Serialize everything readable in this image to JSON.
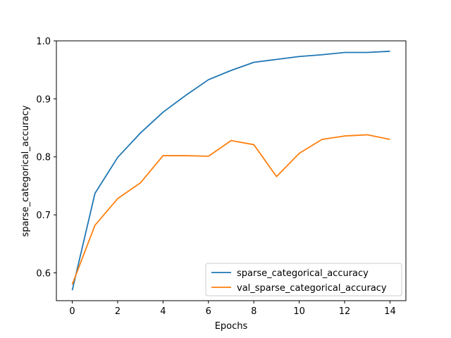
{
  "chart_data": {
    "type": "line",
    "title": "",
    "xlabel": "Epochs",
    "ylabel": "sparse_categorical_accuracy",
    "xlim": [
      -0.7,
      14.7
    ],
    "ylim": [
      0.552,
      1.0
    ],
    "xticks": [
      0,
      2,
      4,
      6,
      8,
      10,
      12,
      14
    ],
    "yticks": [
      0.6,
      0.7,
      0.8,
      0.9,
      1.0
    ],
    "ytick_labels": [
      "0.6",
      "0.7",
      "0.8",
      "0.9",
      "1.0"
    ],
    "x": [
      0,
      1,
      2,
      3,
      4,
      5,
      6,
      7,
      8,
      9,
      10,
      11,
      12,
      13,
      14
    ],
    "grid": false,
    "legend_position": "lower-right",
    "series": [
      {
        "name": "sparse_categorical_accuracy",
        "color": "#1f77b4",
        "values": [
          0.57,
          0.737,
          0.799,
          0.841,
          0.877,
          0.906,
          0.933,
          0.949,
          0.963,
          0.968,
          0.973,
          0.976,
          0.98,
          0.98,
          0.982
        ]
      },
      {
        "name": "val_sparse_categorical_accuracy",
        "color": "#ff7f0e",
        "values": [
          0.58,
          0.682,
          0.728,
          0.755,
          0.802,
          0.802,
          0.801,
          0.828,
          0.821,
          0.766,
          0.806,
          0.83,
          0.836,
          0.838,
          0.83
        ]
      }
    ]
  }
}
